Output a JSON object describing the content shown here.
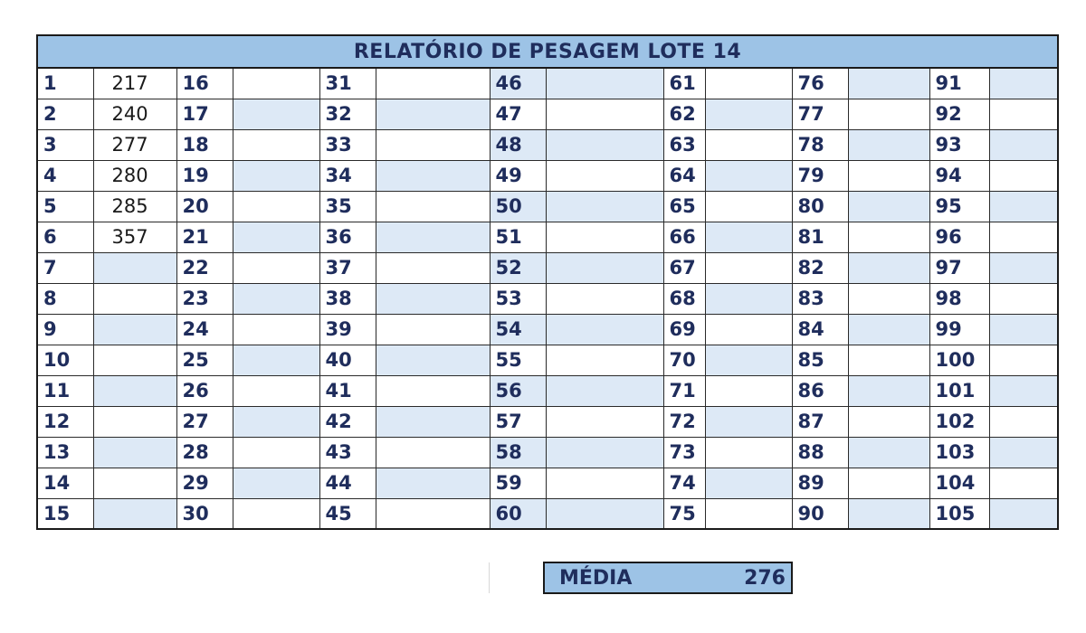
{
  "title": "RELATÓRIO DE PESAGEM LOTE 14",
  "groups": [
    {
      "start": 1,
      "weights": [
        "217",
        "240",
        "277",
        "280",
        "285",
        "357",
        "",
        "",
        "",
        "",
        "",
        "",
        "",
        "",
        ""
      ]
    },
    {
      "start": 16,
      "weights": [
        "",
        "",
        "",
        "",
        "",
        "",
        "",
        "",
        "",
        "",
        "",
        "",
        "",
        "",
        ""
      ]
    },
    {
      "start": 31,
      "weights": [
        "",
        "",
        "",
        "",
        "",
        "",
        "",
        "",
        "",
        "",
        "",
        "",
        "",
        "",
        ""
      ]
    },
    {
      "start": 46,
      "weights": [
        "",
        "",
        "",
        "",
        "",
        "",
        "",
        "",
        "",
        "",
        "",
        "",
        "",
        "",
        ""
      ]
    },
    {
      "start": 61,
      "weights": [
        "",
        "",
        "",
        "",
        "",
        "",
        "",
        "",
        "",
        "",
        "",
        "",
        "",
        "",
        ""
      ]
    },
    {
      "start": 76,
      "weights": [
        "",
        "",
        "",
        "",
        "",
        "",
        "",
        "",
        "",
        "",
        "",
        "",
        "",
        "",
        ""
      ]
    },
    {
      "start": 91,
      "weights": [
        "",
        "",
        "",
        "",
        "",
        "",
        "",
        "",
        "",
        "",
        "",
        "",
        "",
        "",
        ""
      ]
    }
  ],
  "summary": {
    "label": "MÉDIA",
    "value": "276"
  }
}
